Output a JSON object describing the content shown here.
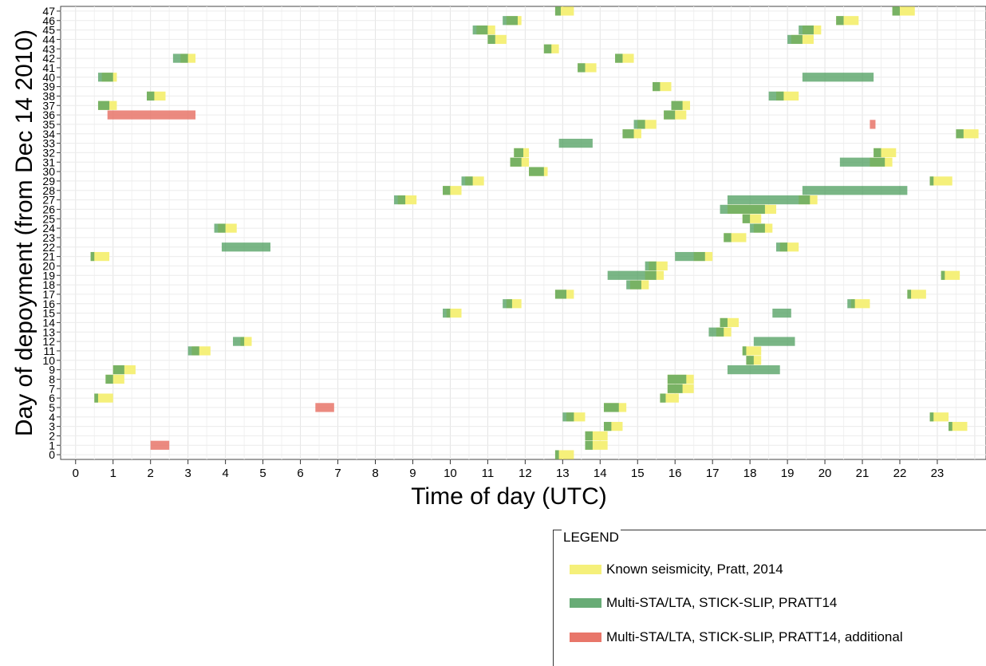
{
  "chart_data": {
    "type": "timeline",
    "xlabel": "Time of day (UTC)",
    "ylabel": "Day of depoyment (from Dec 14 2010)",
    "xlim": [
      -0.4,
      24.3
    ],
    "ylim": [
      -0.5,
      47.5
    ],
    "x_ticks": [
      0,
      1,
      2,
      3,
      4,
      5,
      6,
      7,
      8,
      9,
      10,
      11,
      12,
      13,
      14,
      15,
      16,
      17,
      18,
      19,
      20,
      21,
      22,
      23
    ],
    "y_ticks": [
      0,
      1,
      2,
      3,
      4,
      5,
      6,
      7,
      8,
      9,
      10,
      11,
      12,
      13,
      14,
      15,
      16,
      17,
      18,
      19,
      20,
      21,
      22,
      23,
      24,
      25,
      26,
      27,
      28,
      29,
      30,
      31,
      32,
      33,
      34,
      35,
      36,
      37,
      38,
      39,
      40,
      41,
      42,
      43,
      44,
      45,
      46,
      47
    ],
    "grid": true,
    "legend_position": "bottom-right",
    "series": [
      {
        "name": "Known seismicity, Pratt, 2014",
        "color": "#f5f07a",
        "intervals": [
          [
            0,
            12.8,
            13.3
          ],
          [
            1,
            13.6,
            14.2
          ],
          [
            2,
            13.6,
            14.2
          ],
          [
            3,
            14.1,
            14.6
          ],
          [
            4,
            13.1,
            13.6
          ],
          [
            4,
            22.8,
            23.3
          ],
          [
            3,
            23.3,
            23.8
          ],
          [
            5,
            14.1,
            14.7
          ],
          [
            6,
            0.5,
            1.0
          ],
          [
            6,
            15.6,
            16.1
          ],
          [
            7,
            15.8,
            16.5
          ],
          [
            8,
            0.8,
            1.3
          ],
          [
            8,
            15.8,
            16.5
          ],
          [
            9,
            1.0,
            1.6
          ],
          [
            10,
            17.9,
            18.3
          ],
          [
            11,
            3.1,
            3.6
          ],
          [
            11,
            17.8,
            18.3
          ],
          [
            12,
            4.4,
            4.7
          ],
          [
            13,
            17.1,
            17.5
          ],
          [
            14,
            17.2,
            17.7
          ],
          [
            15,
            9.9,
            10.3
          ],
          [
            16,
            11.5,
            11.9
          ],
          [
            16,
            20.7,
            21.2
          ],
          [
            17,
            12.8,
            13.3
          ],
          [
            17,
            22.2,
            22.7
          ],
          [
            18,
            14.8,
            15.3
          ],
          [
            19,
            15.2,
            15.7
          ],
          [
            19,
            23.1,
            23.6
          ],
          [
            20,
            15.3,
            15.8
          ],
          [
            21,
            0.4,
            0.9
          ],
          [
            21,
            16.5,
            17.0
          ],
          [
            22,
            18.8,
            19.3
          ],
          [
            23,
            17.3,
            17.9
          ],
          [
            24,
            3.8,
            4.3
          ],
          [
            24,
            18.1,
            18.6
          ],
          [
            25,
            17.8,
            18.3
          ],
          [
            26,
            17.4,
            18.7
          ],
          [
            27,
            8.6,
            9.1
          ],
          [
            27,
            19.3,
            19.8
          ],
          [
            28,
            9.8,
            10.3
          ],
          [
            29,
            10.4,
            10.9
          ],
          [
            29,
            22.8,
            23.4
          ],
          [
            30,
            12.1,
            12.6
          ],
          [
            31,
            11.6,
            12.1
          ],
          [
            31,
            21.2,
            21.8
          ],
          [
            32,
            11.7,
            12.1
          ],
          [
            32,
            21.3,
            21.9
          ],
          [
            34,
            14.6,
            15.1
          ],
          [
            34,
            23.5,
            24.1
          ],
          [
            35,
            15.0,
            15.5
          ],
          [
            36,
            15.7,
            16.3
          ],
          [
            37,
            0.6,
            1.1
          ],
          [
            37,
            15.9,
            16.4
          ],
          [
            38,
            1.9,
            2.4
          ],
          [
            38,
            18.7,
            19.3
          ],
          [
            39,
            15.4,
            15.9
          ],
          [
            40,
            0.7,
            1.1
          ],
          [
            41,
            13.4,
            13.9
          ],
          [
            42,
            2.8,
            3.2
          ],
          [
            42,
            14.4,
            14.9
          ],
          [
            43,
            12.5,
            12.9
          ],
          [
            44,
            11.0,
            11.5
          ],
          [
            44,
            19.1,
            19.7
          ],
          [
            45,
            10.7,
            11.2
          ],
          [
            45,
            19.4,
            19.9
          ],
          [
            46,
            11.5,
            11.9
          ],
          [
            46,
            20.3,
            20.9
          ],
          [
            47,
            12.8,
            13.3
          ],
          [
            47,
            21.8,
            22.4
          ]
        ]
      },
      {
        "name": "Multi-STA/LTA, STICK-SLIP, PRATT14",
        "color": "#4e9e5e",
        "intervals": [
          [
            0,
            12.8,
            12.9
          ],
          [
            1,
            13.6,
            13.8
          ],
          [
            2,
            13.6,
            13.8
          ],
          [
            3,
            14.1,
            14.3
          ],
          [
            4,
            13.0,
            13.3
          ],
          [
            4,
            22.8,
            22.9
          ],
          [
            3,
            23.3,
            23.4
          ],
          [
            5,
            14.1,
            14.5
          ],
          [
            6,
            0.5,
            0.6
          ],
          [
            6,
            15.6,
            15.75
          ],
          [
            7,
            15.8,
            16.2
          ],
          [
            8,
            0.8,
            1.0
          ],
          [
            8,
            15.8,
            16.3
          ],
          [
            9,
            1.0,
            1.3
          ],
          [
            9,
            17.4,
            18.8
          ],
          [
            10,
            17.9,
            18.1
          ],
          [
            11,
            3.0,
            3.3
          ],
          [
            11,
            17.8,
            17.9
          ],
          [
            12,
            4.2,
            4.5
          ],
          [
            12,
            18.1,
            19.2
          ],
          [
            13,
            16.9,
            17.3
          ],
          [
            14,
            17.2,
            17.4
          ],
          [
            15,
            9.8,
            10.0
          ],
          [
            15,
            18.6,
            19.1
          ],
          [
            16,
            11.4,
            11.65
          ],
          [
            16,
            20.6,
            20.8
          ],
          [
            17,
            12.8,
            13.1
          ],
          [
            17,
            22.2,
            22.3
          ],
          [
            18,
            14.7,
            15.1
          ],
          [
            19,
            14.2,
            15.5
          ],
          [
            19,
            23.1,
            23.2
          ],
          [
            20,
            15.2,
            15.5
          ],
          [
            21,
            0.4,
            0.5
          ],
          [
            21,
            16.0,
            16.8
          ],
          [
            22,
            3.9,
            5.2
          ],
          [
            22,
            18.7,
            19.0
          ],
          [
            23,
            17.3,
            17.5
          ],
          [
            24,
            3.7,
            4.0
          ],
          [
            24,
            18.0,
            18.4
          ],
          [
            25,
            17.8,
            18.0
          ],
          [
            26,
            17.2,
            18.4
          ],
          [
            27,
            8.5,
            8.8
          ],
          [
            27,
            17.4,
            19.6
          ],
          [
            28,
            9.8,
            10.0
          ],
          [
            28,
            19.4,
            22.2
          ],
          [
            29,
            10.3,
            10.6
          ],
          [
            29,
            22.8,
            22.9
          ],
          [
            30,
            12.1,
            12.5
          ],
          [
            31,
            11.6,
            11.9
          ],
          [
            31,
            20.4,
            21.6
          ],
          [
            32,
            11.7,
            11.95
          ],
          [
            32,
            21.3,
            21.5
          ],
          [
            33,
            12.9,
            13.8
          ],
          [
            34,
            14.6,
            14.9
          ],
          [
            34,
            23.5,
            23.7
          ],
          [
            35,
            14.9,
            15.2
          ],
          [
            36,
            15.7,
            16.0
          ],
          [
            37,
            0.6,
            0.9
          ],
          [
            37,
            15.9,
            16.2
          ],
          [
            38,
            1.9,
            2.1
          ],
          [
            38,
            18.5,
            18.9
          ],
          [
            39,
            15.4,
            15.6
          ],
          [
            40,
            0.6,
            1.0
          ],
          [
            40,
            19.4,
            21.3
          ],
          [
            41,
            13.4,
            13.6
          ],
          [
            42,
            2.6,
            3.0
          ],
          [
            42,
            14.4,
            14.6
          ],
          [
            43,
            12.5,
            12.7
          ],
          [
            44,
            11.0,
            11.2
          ],
          [
            44,
            19.0,
            19.4
          ],
          [
            45,
            10.6,
            11.0
          ],
          [
            45,
            19.3,
            19.7
          ],
          [
            46,
            11.4,
            11.8
          ],
          [
            46,
            20.3,
            20.5
          ],
          [
            47,
            12.8,
            12.95
          ],
          [
            47,
            21.8,
            22.0
          ]
        ]
      },
      {
        "name": "Multi-STA/LTA, STICK-SLIP, PRATT14, additional",
        "color": "#e8766a",
        "intervals": [
          [
            1,
            2.0,
            2.5
          ],
          [
            5,
            6.4,
            6.9
          ],
          [
            35,
            21.2,
            21.35
          ],
          [
            36,
            0.85,
            3.2
          ]
        ]
      }
    ]
  }
}
